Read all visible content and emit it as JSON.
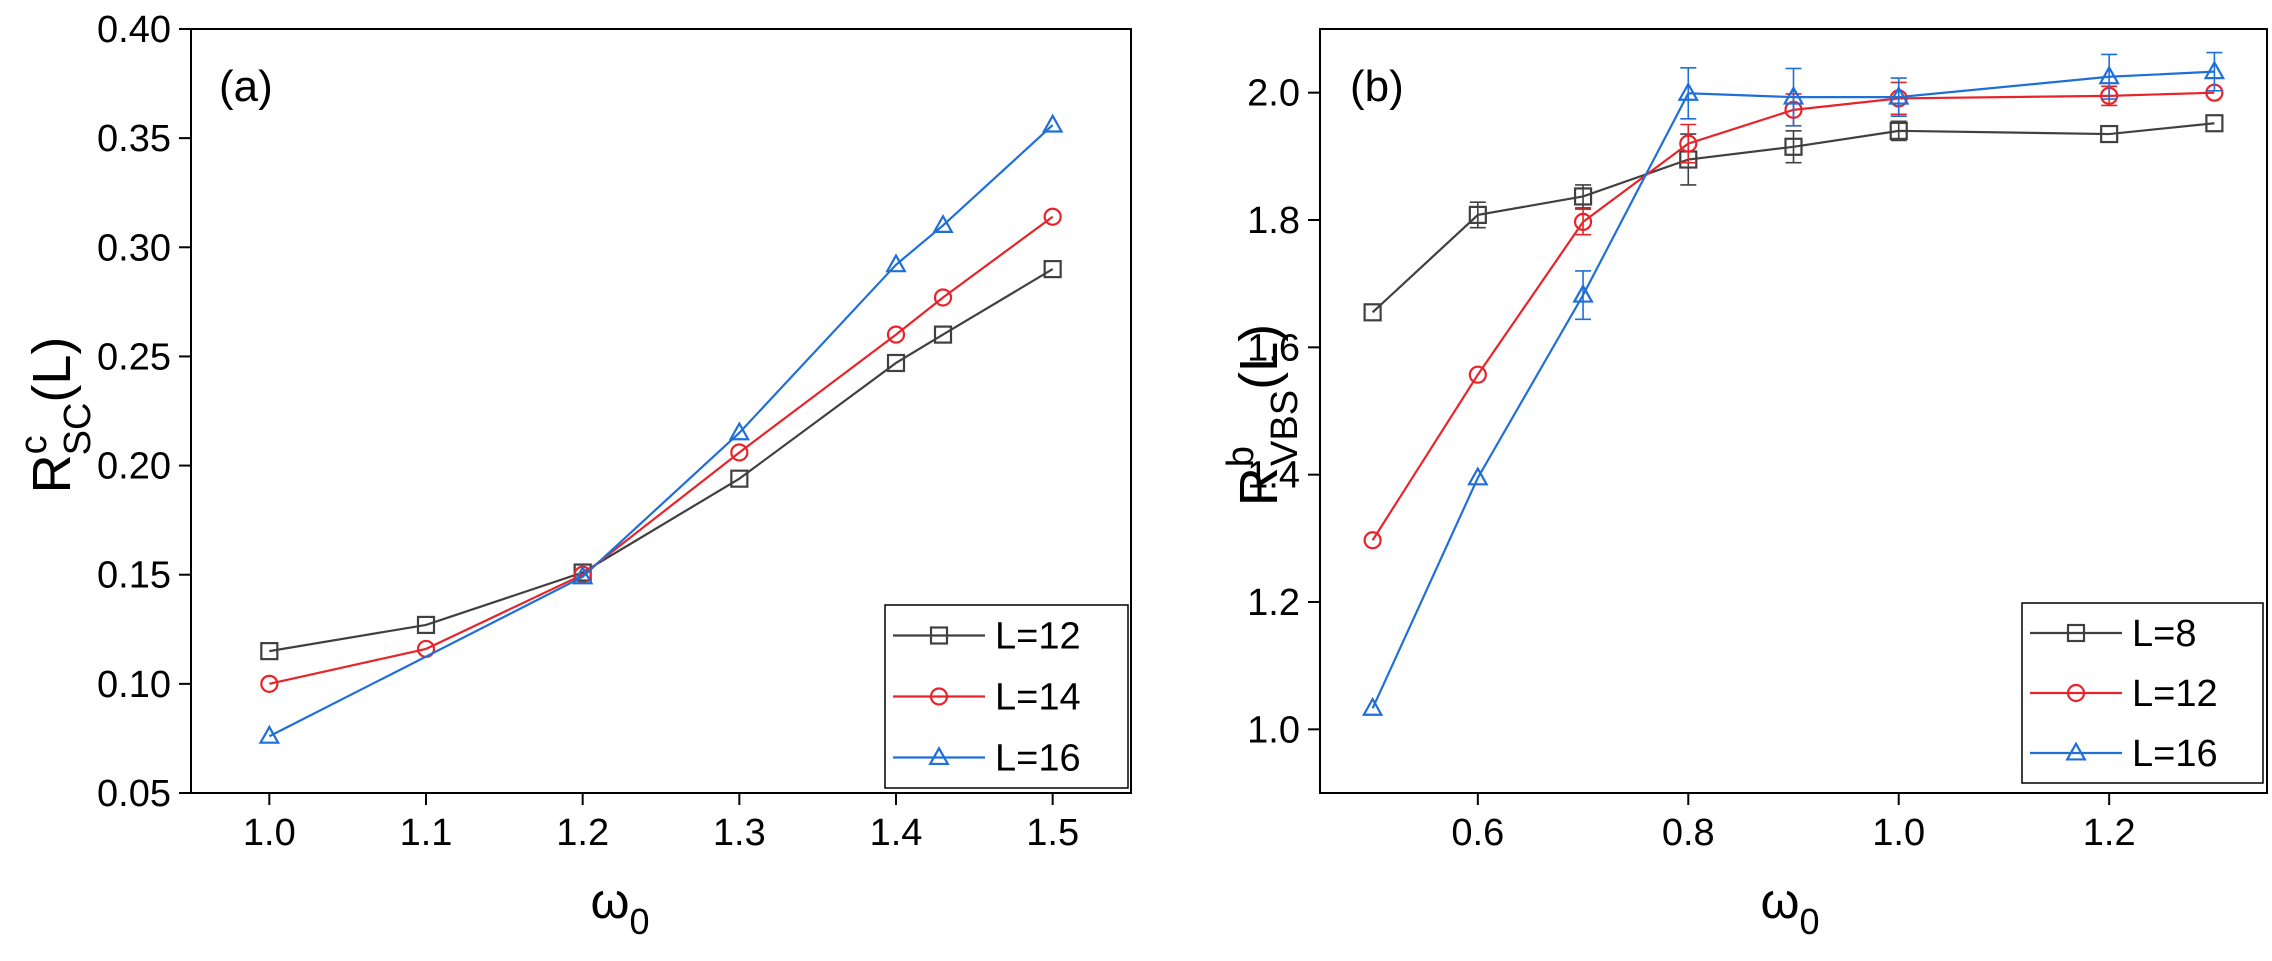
{
  "chart_data": [
    {
      "type": "line",
      "panel_label": "(a)",
      "xlabel": "ω",
      "xlabel_sub": "0",
      "ylabel": {
        "main": "R",
        "sup": "c",
        "sub": "SC",
        "suffix": "(L)"
      },
      "xlim": [
        0.95,
        1.55
      ],
      "ylim": [
        0.05,
        0.4
      ],
      "xticks": [
        1.0,
        1.1,
        1.2,
        1.3,
        1.4,
        1.5
      ],
      "xtick_labels": [
        "1.0",
        "1.1",
        "1.2",
        "1.3",
        "1.4",
        "1.5"
      ],
      "yticks": [
        0.05,
        0.1,
        0.15,
        0.2,
        0.25,
        0.3,
        0.35,
        0.4
      ],
      "ytick_labels": [
        "0.05",
        "0.10",
        "0.15",
        "0.20",
        "0.25",
        "0.30",
        "0.35",
        "0.40"
      ],
      "legend_position": "bottom-right",
      "series": [
        {
          "name": "L=12",
          "color": "#404040",
          "marker": "square",
          "x": [
            1.0,
            1.1,
            1.2,
            1.3,
            1.4,
            1.43,
            1.5
          ],
          "y": [
            0.115,
            0.127,
            0.151,
            0.194,
            0.247,
            0.26,
            0.29
          ]
        },
        {
          "name": "L=14",
          "color": "#e8242a",
          "marker": "circle",
          "x": [
            1.0,
            1.1,
            1.2,
            1.3,
            1.4,
            1.43,
            1.5
          ],
          "y": [
            0.1,
            0.116,
            0.15,
            0.206,
            0.26,
            0.277,
            0.314
          ]
        },
        {
          "name": "L=16",
          "color": "#1f6fd8",
          "marker": "triangle",
          "x": [
            1.0,
            1.2,
            1.3,
            1.4,
            1.43,
            1.5
          ],
          "y": [
            0.076,
            0.149,
            0.215,
            0.292,
            0.31,
            0.356
          ]
        }
      ]
    },
    {
      "type": "line",
      "panel_label": "(b)",
      "xlabel": "ω",
      "xlabel_sub": "0",
      "ylabel": {
        "main": "R",
        "sup": "b",
        "sub": "VBS",
        "suffix": "(L)"
      },
      "xlim": [
        0.45,
        1.35
      ],
      "ylim": [
        0.9,
        2.1
      ],
      "xticks": [
        0.6,
        0.8,
        1.0,
        1.2
      ],
      "xtick_labels": [
        "0.6",
        "0.8",
        "1.0",
        "1.2"
      ],
      "yticks": [
        1.0,
        1.2,
        1.4,
        1.6,
        1.8,
        2.0
      ],
      "ytick_labels": [
        "1.0",
        "1.2",
        "1.4",
        "1.6",
        "1.8",
        "2.0"
      ],
      "legend_position": "bottom-right",
      "series": [
        {
          "name": "L=8",
          "color": "#404040",
          "marker": "square",
          "x": [
            0.5,
            0.6,
            0.7,
            0.8,
            0.9,
            1.0,
            1.2,
            1.3
          ],
          "y": [
            1.655,
            1.808,
            1.837,
            1.895,
            1.915,
            1.94,
            1.935,
            1.952
          ],
          "err": [
            0.0,
            0.02,
            0.018,
            0.04,
            0.025,
            0.015,
            0.0,
            0.0
          ]
        },
        {
          "name": "L=12",
          "color": "#e8242a",
          "marker": "circle",
          "x": [
            0.5,
            0.6,
            0.7,
            0.8,
            0.9,
            1.0,
            1.2,
            1.3
          ],
          "y": [
            1.297,
            1.557,
            1.797,
            1.92,
            1.973,
            1.991,
            1.995,
            2.0
          ],
          "err": [
            0.0,
            0.0,
            0.02,
            0.03,
            0.025,
            0.025,
            0.015,
            0.0
          ]
        },
        {
          "name": "L=16",
          "color": "#1f6fd8",
          "marker": "triangle",
          "x": [
            0.5,
            0.6,
            0.7,
            0.8,
            0.9,
            1.0,
            1.2,
            1.3
          ],
          "y": [
            1.033,
            1.395,
            1.682,
            1.999,
            1.993,
            1.993,
            2.025,
            2.033
          ],
          "err": [
            0.0,
            0.0,
            0.038,
            0.04,
            0.045,
            0.03,
            0.035,
            0.03
          ]
        }
      ]
    }
  ]
}
